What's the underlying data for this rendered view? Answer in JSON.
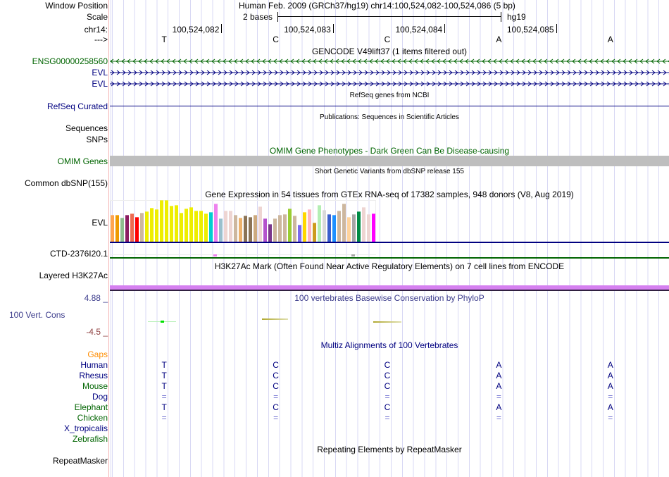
{
  "header": {
    "window_position_label": "Window Position",
    "assembly_title": "Human Feb. 2009 (GRCh37/hg19)   chr14:100,524,082-100,524,086 (5 bp)",
    "scale_label": "Scale",
    "scale_value": "2 bases",
    "scale_db": "hg19",
    "chrom_label": "chr14:",
    "positions": [
      "100,524,082",
      "100,524,083",
      "100,524,084",
      "100,524,085"
    ],
    "strand_label": "--->",
    "bases": [
      "T",
      "C",
      "C",
      "A",
      "A"
    ]
  },
  "tracks": {
    "gencode": {
      "title": "GENCODE V49lift37 (1 items filtered out)",
      "items": [
        "ENSG00000258560",
        "EVL",
        "EVL"
      ]
    },
    "refseq": {
      "title": "RefSeq genes from NCBI",
      "label": "RefSeq Curated"
    },
    "publications": {
      "title": "Publications: Sequences in Scientific Articles",
      "labels": [
        "Sequences",
        "SNPs"
      ]
    },
    "omim": {
      "title": "OMIM Gene Phenotypes - Dark Green Can Be Disease-causing",
      "label": "OMIM Genes"
    },
    "dbsnp": {
      "title": "Short Genetic Variants from dbSNP release 155",
      "label": "Common dbSNP(155)"
    },
    "gtex": {
      "title": "Gene Expression in 54 tissues from GTEx RNA-seq of 17382 samples, 948 donors (V8, Aug 2019)",
      "label": "EVL",
      "label2": "CTD-2376I20.1"
    },
    "h3k27ac": {
      "title": "H3K27Ac Mark (Often Found Near Active Regulatory Elements) on 7 cell lines from ENCODE",
      "label": "Layered H3K27Ac"
    },
    "phylop": {
      "title": "100 vertebrates Basewise Conservation by PhyloP",
      "label": "100 Vert. Cons",
      "max": "4.88 _",
      "min": "-4.5 _"
    },
    "multiz": {
      "title": "Multiz Alignments of 100 Vertebrates",
      "gaps_label": "Gaps",
      "species": [
        {
          "name": "Human",
          "bases": [
            "T",
            "C",
            "C",
            "A",
            "A"
          ]
        },
        {
          "name": "Rhesus",
          "bases": [
            "T",
            "C",
            "C",
            "A",
            "A"
          ]
        },
        {
          "name": "Mouse",
          "bases": [
            "T",
            "C",
            "C",
            "A",
            "A"
          ]
        },
        {
          "name": "Dog",
          "bases": [
            "=",
            "=",
            "=",
            "=",
            "="
          ]
        },
        {
          "name": "Elephant",
          "bases": [
            "T",
            "C",
            "C",
            "A",
            "A"
          ]
        },
        {
          "name": "Chicken",
          "bases": [
            "=",
            "=",
            "=",
            "=",
            "="
          ]
        },
        {
          "name": "X_tropicalis",
          "bases": []
        },
        {
          "name": "Zebrafish",
          "bases": []
        }
      ]
    },
    "repeatmasker": {
      "title": "Repeating Elements by RepeatMasker",
      "label": "RepeatMasker"
    }
  },
  "chart_data": {
    "type": "bar",
    "title": "Gene Expression in 54 tissues from GTEx RNA-seq of 17382 samples, 948 donors (V8, Aug 2019)",
    "note": "relative expression (unlabeled axis)",
    "values": [
      113,
      113,
      101,
      113,
      119,
      104,
      122,
      128,
      143,
      137,
      176,
      176,
      152,
      155,
      122,
      140,
      146,
      131,
      131,
      119,
      125,
      161,
      98,
      131,
      131,
      113,
      101,
      110,
      104,
      113,
      149,
      98,
      74,
      98,
      113,
      116,
      140,
      110,
      71,
      125,
      137,
      80,
      155,
      134,
      116,
      113,
      131,
      161,
      104,
      116,
      128,
      146,
      116,
      119
    ],
    "colors": [
      "#FFA54F",
      "#EE9A00",
      "#8FBC8F",
      "#8B1C62",
      "#EE6A50",
      "#FF0000",
      "#CDB79E",
      "#EEEE00",
      "#EEEE00",
      "#EEEE00",
      "#EEEE00",
      "#EEEE00",
      "#EEEE00",
      "#EEEE00",
      "#EEEE00",
      "#EEEE00",
      "#EEEE00",
      "#EEEE00",
      "#EEEE00",
      "#EEEE00",
      "#00CED1",
      "#EE82EE",
      "#9AC0CD",
      "#EED5D2",
      "#EED5D2",
      "#CDB79E",
      "#EEB26C",
      "#8B7355",
      "#8B7355",
      "#CDAA7D",
      "#EED5D2",
      "#B452CD",
      "#7A378B",
      "#CDB79E",
      "#CDB79E",
      "#CDB79E",
      "#9ACD32",
      "#CDB79E",
      "#7B68EE",
      "#FFD700",
      "#FFB6C1",
      "#CD9B1D",
      "#B4EEB4",
      "#D9D9D9",
      "#3A5FCD",
      "#1E90FF",
      "#CDB79E",
      "#CDB79E",
      "#FFD39B",
      "#A6A6A6",
      "#008B45",
      "#EED5D2",
      "#EED5D2",
      "#FF00FF"
    ],
    "max_value": 180
  },
  "colors": {
    "navy": "#000080",
    "green": "#006400",
    "omim_bar": "#bebebe",
    "h3k27ac": "#d580f0",
    "gaps": "#ff8c00",
    "phylop_max": "#3c3c8c",
    "phylop_min": "#8c3c3c"
  }
}
